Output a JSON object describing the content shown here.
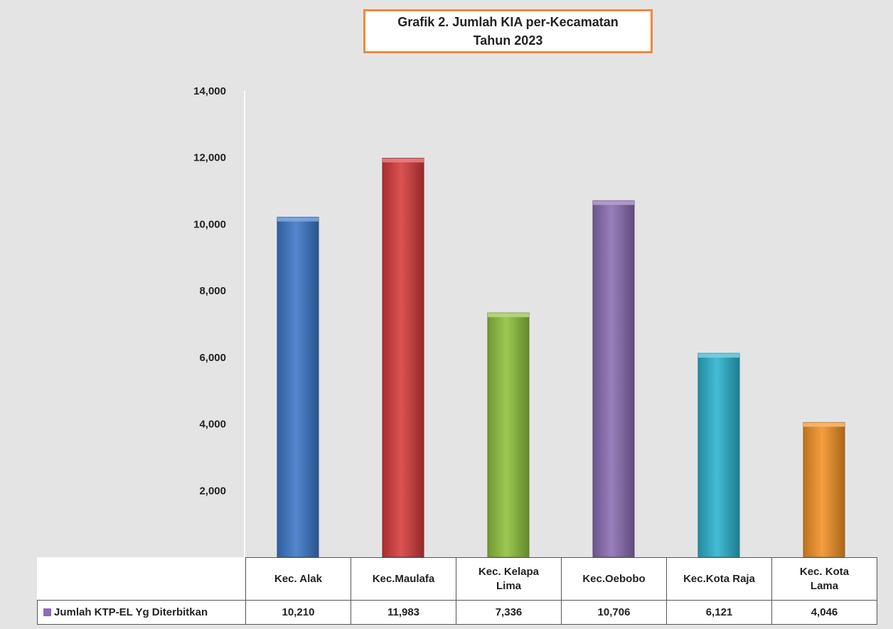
{
  "chart_data": {
    "type": "bar",
    "title": "Grafik  2. Jumlah KIA  per-Kecamatan",
    "subtitle": "Tahun  2023",
    "categories": [
      "Kec. Alak",
      "Kec.Maulafa",
      "Kec. Kelapa Lima",
      "Kec.Oebobo",
      "Kec.Kota Raja",
      "Kec. Kota Lama"
    ],
    "series": [
      {
        "name": "Jumlah KTP-EL Yg Diterbitkan",
        "values": [
          10210,
          11983,
          7336,
          10706,
          6121,
          4046
        ],
        "value_labels": [
          "10,210",
          "11,983",
          "7,336",
          "10,706",
          "6,121",
          "4,046"
        ]
      }
    ],
    "bar_colors": [
      "#3c78c9",
      "#d63b3b",
      "#8fc23d",
      "#8a6db3",
      "#2bb3cf",
      "#f39225"
    ],
    "legend_color": "#8b6bb5",
    "ylim": [
      0,
      14000
    ],
    "yticks": [
      0,
      2000,
      4000,
      6000,
      8000,
      10000,
      12000,
      14000
    ],
    "ytick_labels": [
      "-",
      "2,000",
      "4,000",
      "6,000",
      "8,000",
      "10,000",
      "12,000",
      "14,000"
    ],
    "grid": false,
    "legend": "data-table"
  }
}
